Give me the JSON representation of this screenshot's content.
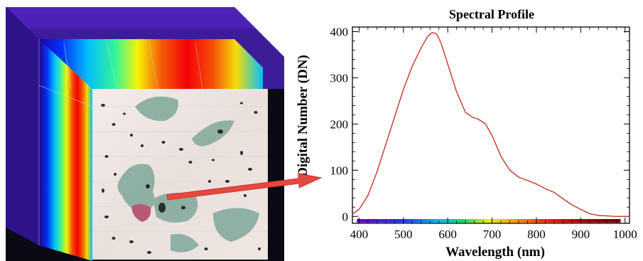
{
  "chart_data": {
    "type": "line",
    "title": "Spectral Profile",
    "xlabel": "Wavelength (nm)",
    "ylabel": "Digital Number (DN)",
    "xlim": [
      385,
      1010
    ],
    "ylim": [
      -15,
      410
    ],
    "xticks": [
      400,
      500,
      600,
      700,
      800,
      900,
      1000
    ],
    "yticks": [
      0,
      100,
      200,
      300,
      400
    ],
    "line_color": "#c0392b",
    "grid": false,
    "series": [
      {
        "x": [
          385,
          400,
          420,
          440,
          460,
          480,
          500,
          520,
          540,
          555,
          565,
          575,
          585,
          600,
          620,
          640,
          655,
          670,
          685,
          700,
          720,
          740,
          760,
          780,
          800,
          820,
          840,
          860,
          880,
          900,
          920,
          940,
          960,
          980,
          1000,
          1010
        ],
        "y": [
          5,
          15,
          45,
          95,
          155,
          215,
          275,
          325,
          365,
          390,
          398,
          395,
          375,
          330,
          270,
          225,
          215,
          210,
          200,
          175,
          130,
          100,
          85,
          78,
          70,
          60,
          52,
          38,
          25,
          15,
          6,
          2,
          1,
          0,
          0,
          0
        ]
      }
    ]
  },
  "image_panel": {
    "arrow_color": "#e8473f",
    "cube_colormap": "jet"
  }
}
